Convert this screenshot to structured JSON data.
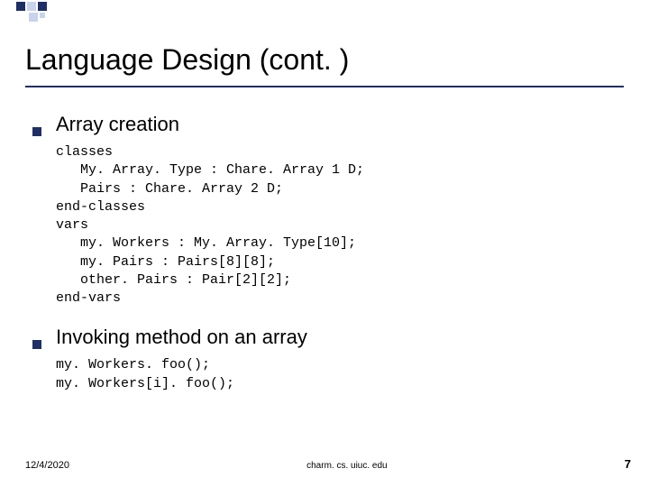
{
  "decoration": {
    "navy": "#1f2f66",
    "light": "#c9d3ec"
  },
  "title": "Language Design (cont. )",
  "bullets": [
    {
      "label": "Array creation",
      "code": "classes\n   My. Array. Type : Chare. Array 1 D;\n   Pairs : Chare. Array 2 D;\nend-classes\nvars\n   my. Workers : My. Array. Type[10];\n   my. Pairs : Pairs[8][8];\n   other. Pairs : Pair[2][2];\nend-vars"
    },
    {
      "label": "Invoking method on an array",
      "code": "my. Workers. foo();\nmy. Workers[i]. foo();"
    }
  ],
  "footer": {
    "date": "12/4/2020",
    "center": "charm. cs. uiuc. edu",
    "page": "7"
  }
}
